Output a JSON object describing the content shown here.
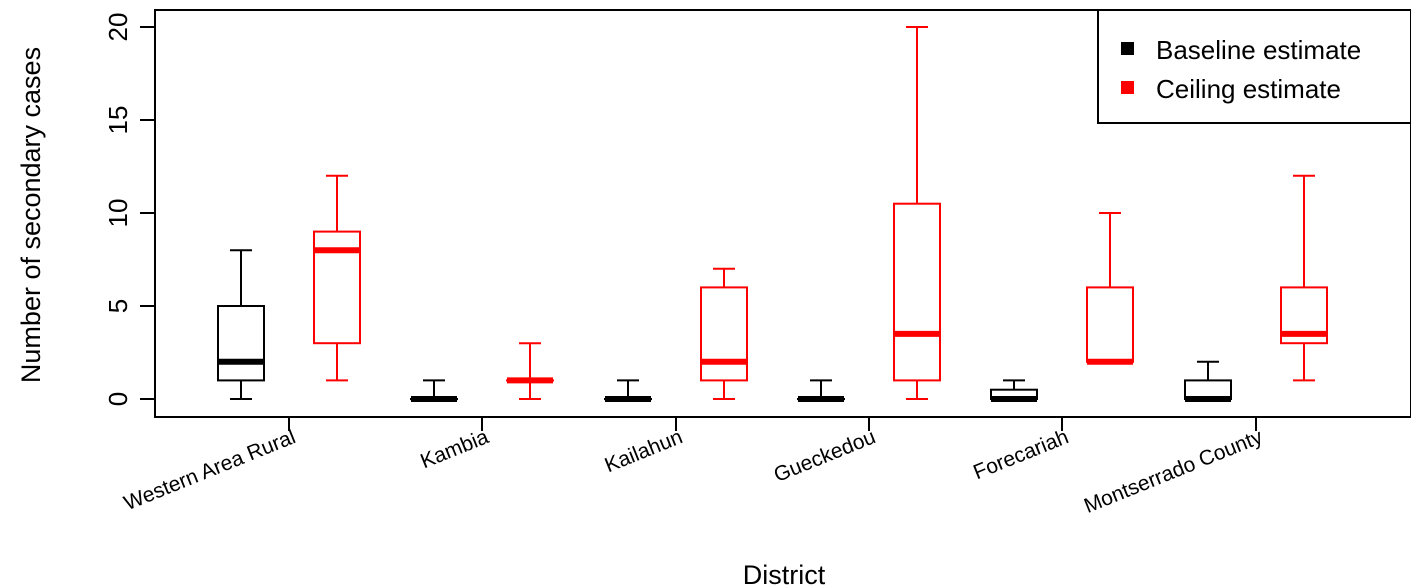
{
  "chart_data": {
    "type": "box",
    "xlabel": "District",
    "ylabel": "Number of secondary cases",
    "ylim": [
      -0.6,
      20.5
    ],
    "yticks": [
      0,
      5,
      10,
      15,
      20
    ],
    "grid": false,
    "legend_position": "top-right",
    "categories": [
      "Western Area Rural",
      "Kambia",
      "Kailahun",
      "Gueckedou",
      "Forecariah",
      "Montserrado County"
    ],
    "series": [
      {
        "name": "Baseline estimate",
        "color": "#000000",
        "boxes": [
          {
            "min": 0,
            "q1": 1,
            "median": 2,
            "q3": 5,
            "max": 8
          },
          {
            "min": 0,
            "q1": 0,
            "median": 0,
            "q3": 0,
            "max": 1
          },
          {
            "min": 0,
            "q1": 0,
            "median": 0,
            "q3": 0,
            "max": 1
          },
          {
            "min": 0,
            "q1": 0,
            "median": 0,
            "q3": 0,
            "max": 1
          },
          {
            "min": 0,
            "q1": 0,
            "median": 0,
            "q3": 0.5,
            "max": 1
          },
          {
            "min": 0,
            "q1": 0,
            "median": 0,
            "q3": 1,
            "max": 2
          }
        ]
      },
      {
        "name": "Ceiling estimate",
        "color": "#ff0000",
        "boxes": [
          {
            "min": 1,
            "q1": 3,
            "median": 8,
            "q3": 9,
            "max": 12
          },
          {
            "min": 0,
            "q1": 1,
            "median": 1,
            "q3": 1,
            "max": 3
          },
          {
            "min": 0,
            "q1": 1,
            "median": 2,
            "q3": 6,
            "max": 7
          },
          {
            "min": 0,
            "q1": 1,
            "median": 3.5,
            "q3": 10.5,
            "max": 20
          },
          {
            "min": 2,
            "q1": 2,
            "median": 2,
            "q3": 6,
            "max": 10
          },
          {
            "min": 1,
            "q1": 3,
            "median": 3.5,
            "q3": 6,
            "max": 12
          }
        ]
      }
    ]
  }
}
